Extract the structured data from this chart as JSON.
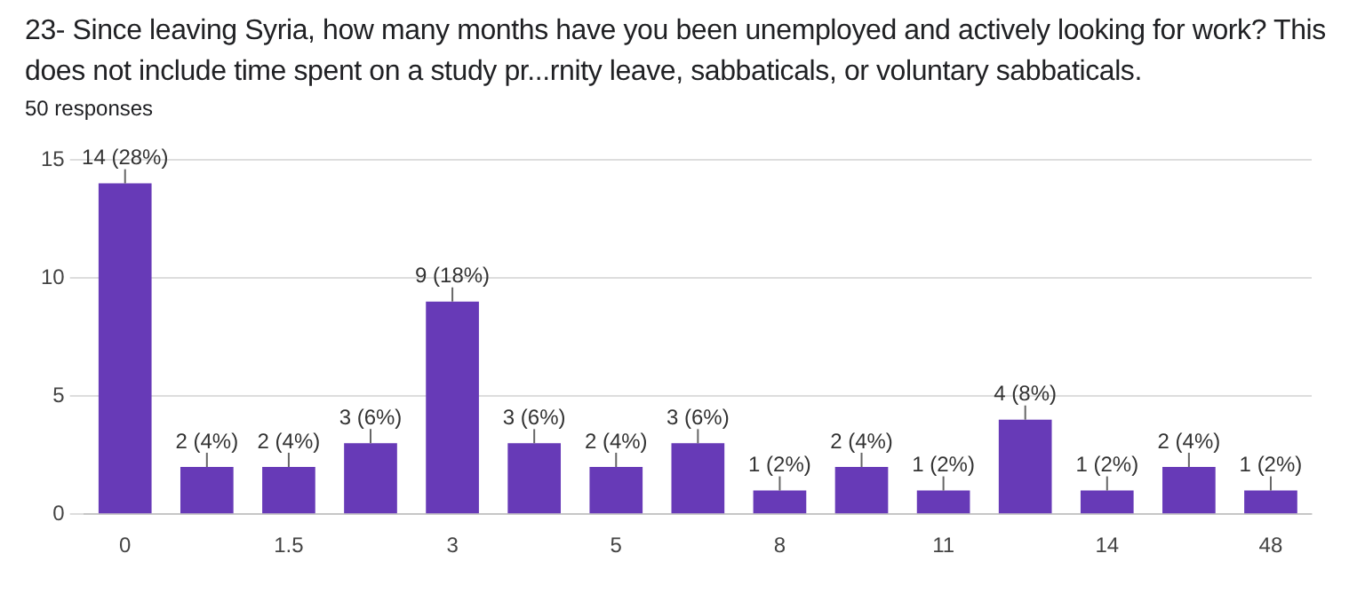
{
  "chart_data": {
    "type": "bar",
    "title": "23- Since leaving Syria, how many months have you been unemployed and actively looking for work? This does not include time spent on a study pr...rnity leave, sabbaticals, or voluntary sabbaticals.",
    "subtitle": "50 responses",
    "categories": [
      "0",
      null,
      "1.5",
      null,
      "3",
      null,
      "5",
      null,
      "8",
      null,
      "11",
      null,
      "14",
      null,
      "48"
    ],
    "values": [
      14,
      2,
      2,
      3,
      9,
      3,
      2,
      3,
      1,
      2,
      1,
      4,
      1,
      2,
      1
    ],
    "value_labels": [
      "14 (28%)",
      "2 (4%)",
      "2 (4%)",
      "3 (6%)",
      "9 (18%)",
      "3 (6%)",
      "2 (4%)",
      "3 (6%)",
      "1 (2%)",
      "2 (4%)",
      "1 (2%)",
      "4 (8%)",
      "1 (2%)",
      "2 (4%)",
      "1 (2%)"
    ],
    "color": "#673ab7",
    "ylim": [
      0,
      15
    ],
    "yticks": [
      0,
      5,
      10,
      15
    ],
    "grid": "y",
    "legend": false
  }
}
